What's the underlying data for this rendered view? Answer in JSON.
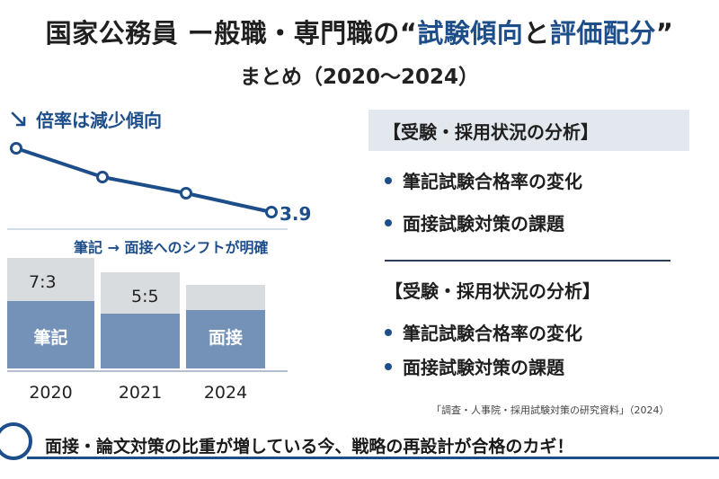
{
  "title": {
    "part1": "国家公務員 ー般職・専門職の“",
    "accent1": "試験傾向",
    "part2": "と",
    "accent2": "評価配分",
    "part3": "”"
  },
  "subtitle": "まとめ（2020〜2024）",
  "trend_heading": "倍率は減少傾向",
  "shift_label": "筆記 → 面接へのシフトが明確",
  "panel": {
    "heading1": "【受験・採用状況の分析】",
    "bullets1": [
      "筆記試験合格率の変化",
      "面接試験対策の課題"
    ],
    "heading2": "【受験・採用状況の分析】",
    "bullets2": [
      "筆記試験合格率の変化",
      "面接試験対策の課題"
    ]
  },
  "source": "「調査・人事院・採用試験対策の研究資料」（2024）",
  "footer_text": "面接・論文対策の比重が増している今、戦略の再設計が合格のカギ！",
  "colors": {
    "accent": "#1d4e8a",
    "bar_lower": "#7491b8",
    "bar_upper": "#d9dcdf"
  },
  "chart_data": [
    {
      "type": "line",
      "title": "倍率は減少傾向",
      "values": [
        null,
        null,
        null,
        3.9
      ],
      "data_labels": [
        "",
        "",
        "",
        "3.9"
      ],
      "grid": false
    },
    {
      "type": "bar",
      "stacked": true,
      "categories": [
        "2020",
        "2021",
        "2024"
      ],
      "segment_labels": [
        {
          "upper": "7:3",
          "lower": "筆記"
        },
        {
          "upper": "5:5",
          "lower": ""
        },
        {
          "upper": "",
          "lower": "面接"
        }
      ],
      "grid": false
    }
  ]
}
